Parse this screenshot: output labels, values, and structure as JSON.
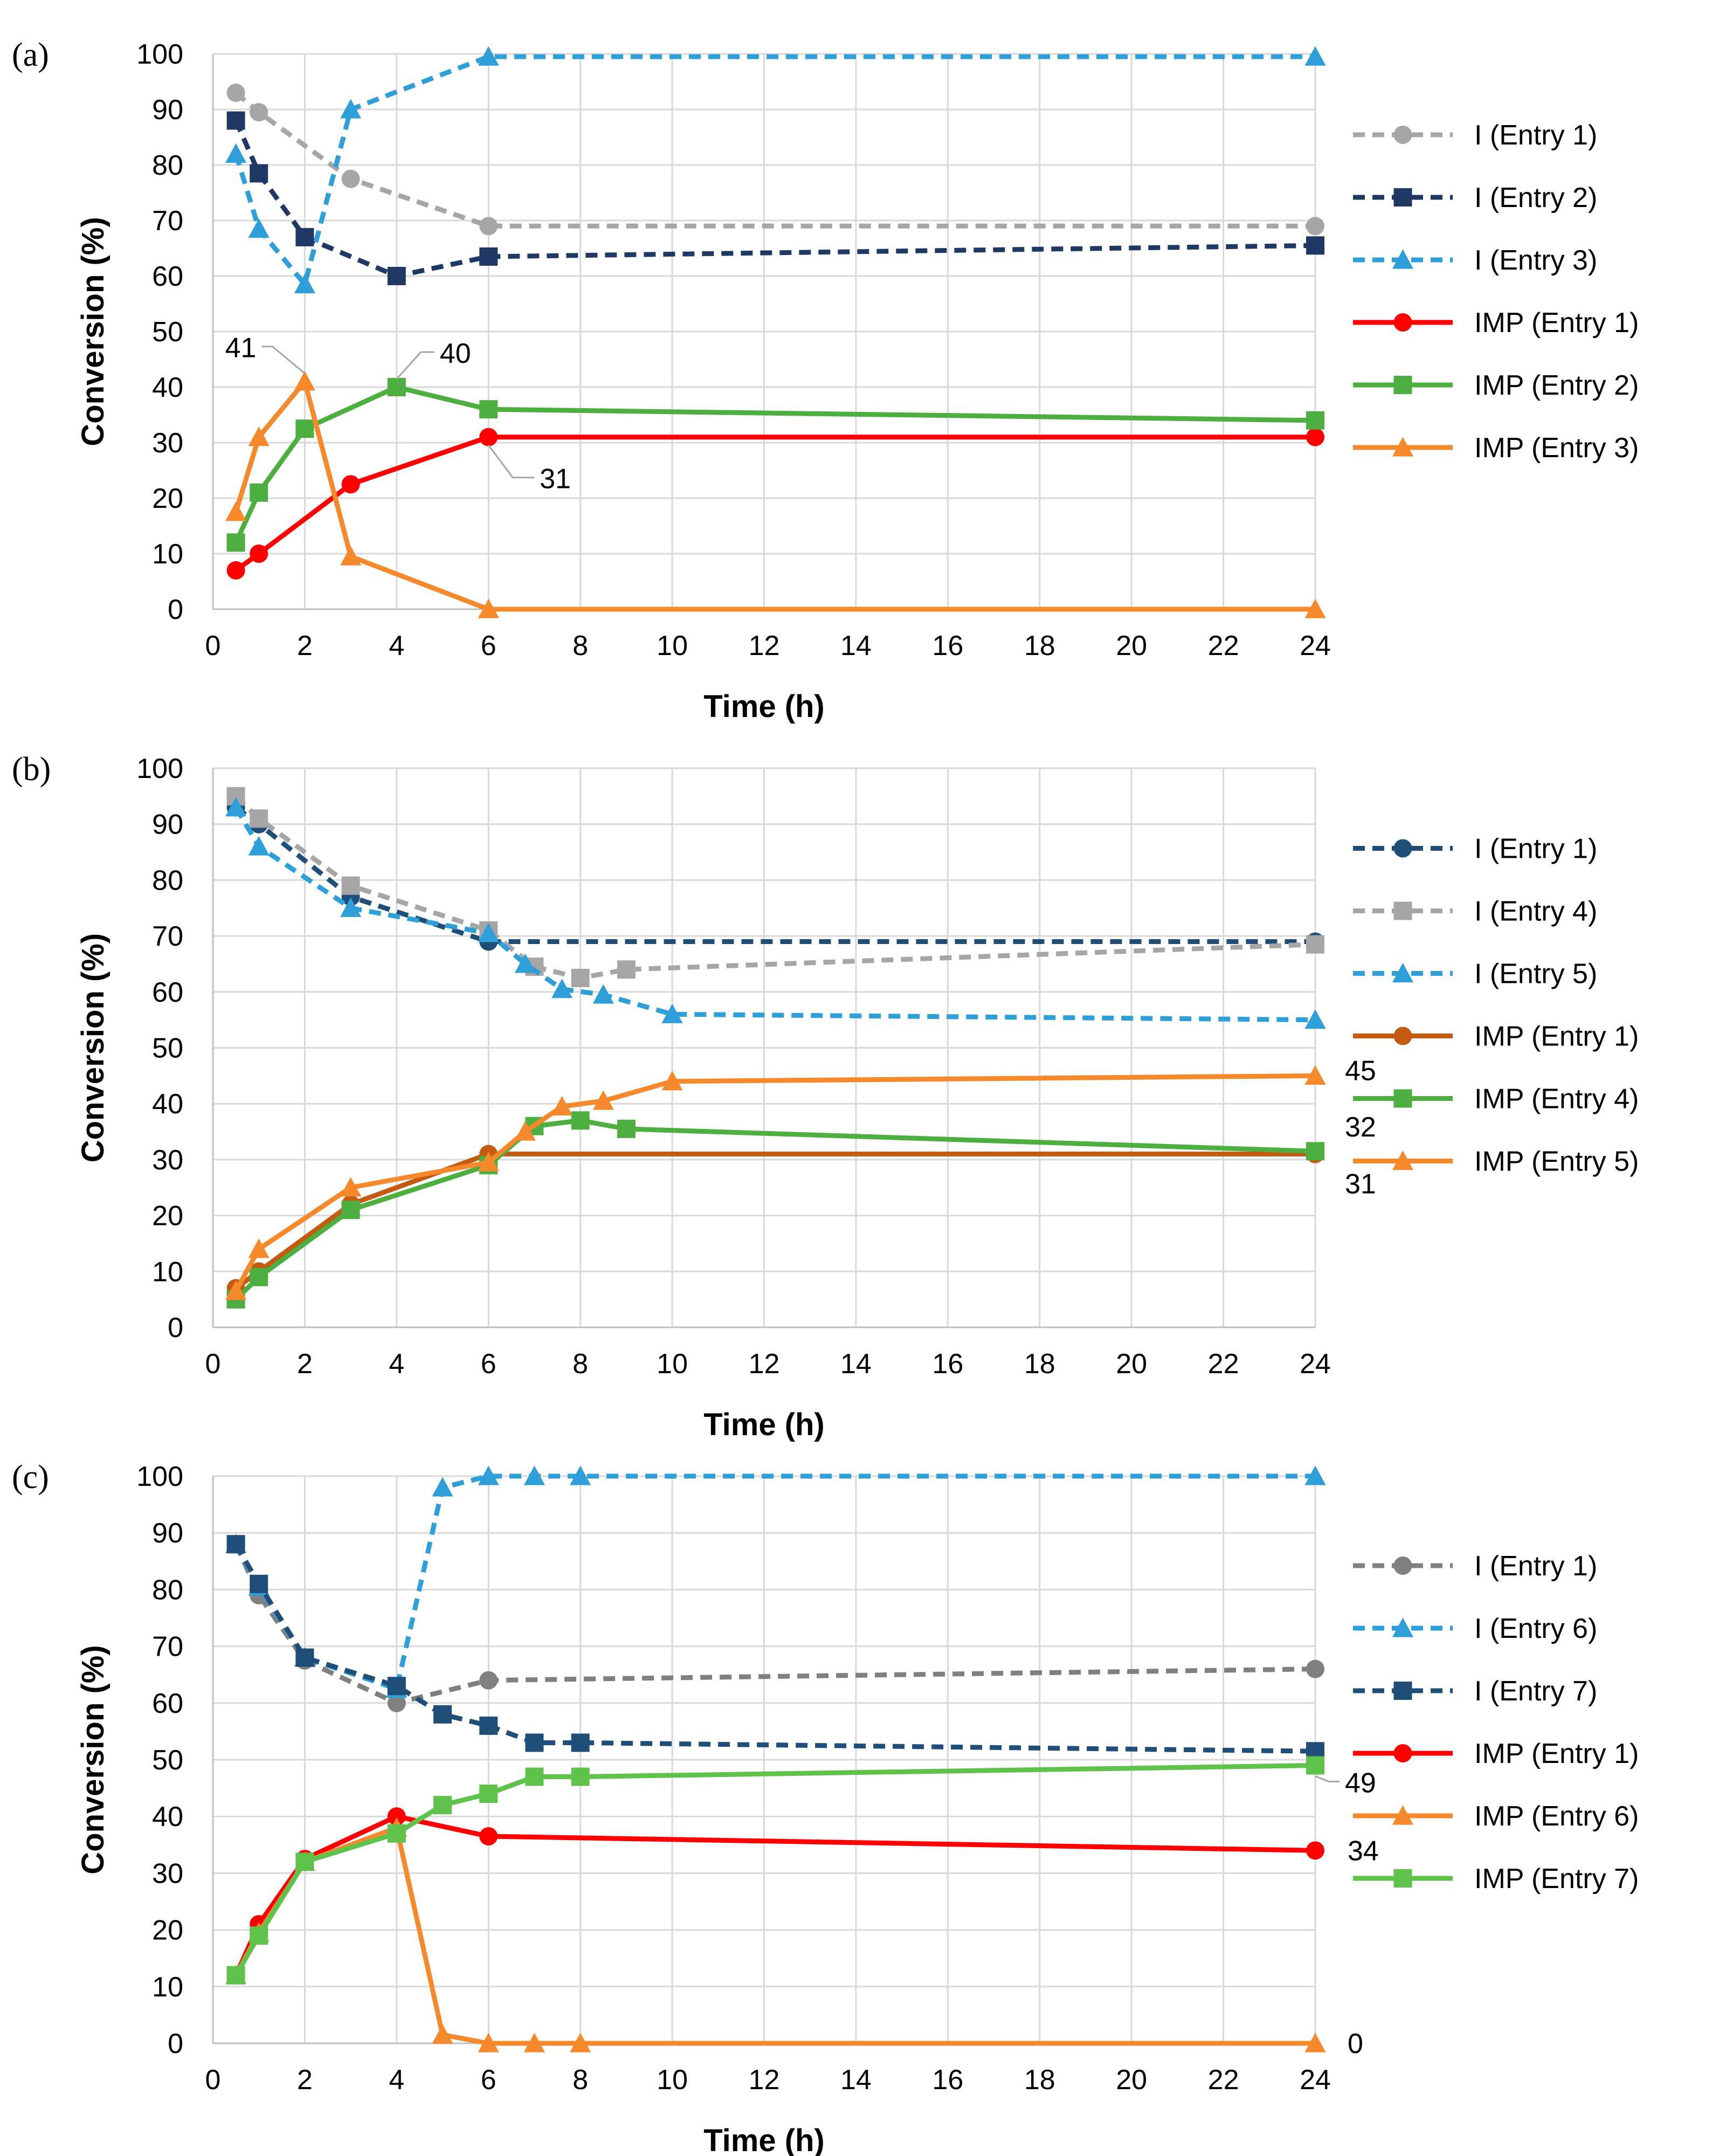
{
  "chart_data": [
    {
      "type": "line",
      "panel_label": "(a)",
      "xlabel": "Time (h)",
      "ylabel": "Conversion (%)",
      "x_ticks": [
        "0",
        "2",
        "4",
        "6",
        "8",
        "10",
        "12",
        "14",
        "16",
        "18",
        "20",
        "22",
        "24"
      ],
      "y_ticks": [
        "0",
        "10",
        "20",
        "30",
        "40",
        "50",
        "60",
        "70",
        "80",
        "90",
        "100"
      ],
      "xlim": [
        0,
        24
      ],
      "ylim": [
        0,
        100
      ],
      "grid": true,
      "legend_position": "right",
      "series": [
        {
          "name": "I (Entry 1)",
          "color": "#a6a6a6",
          "dash": "dashed",
          "marker": "circle",
          "x": [
            0.5,
            1,
            3,
            6,
            24
          ],
          "y": [
            93,
            89.5,
            77.5,
            69,
            69
          ]
        },
        {
          "name": "I (Entry 2)",
          "color": "#1f3864",
          "dash": "dashed",
          "marker": "square",
          "x": [
            0.5,
            1,
            2,
            4,
            6,
            24
          ],
          "y": [
            88,
            78.5,
            67,
            60,
            63.5,
            65.5
          ]
        },
        {
          "name": "I (Entry 3)",
          "color": "#2e9fd8",
          "dash": "dashed",
          "marker": "triangle",
          "x": [
            0.5,
            1,
            2,
            3,
            6,
            24
          ],
          "y": [
            82,
            68.5,
            58.5,
            90,
            99.5,
            99.5
          ]
        },
        {
          "name": "IMP (Entry 1)",
          "color": "#ff0000",
          "dash": "solid",
          "marker": "circle",
          "x": [
            0.5,
            1,
            3,
            6,
            24
          ],
          "y": [
            7,
            10,
            22.5,
            31,
            31
          ]
        },
        {
          "name": "IMP (Entry 2)",
          "color": "#4caf3f",
          "dash": "solid",
          "marker": "square",
          "x": [
            0.5,
            1,
            2,
            4,
            6,
            24
          ],
          "y": [
            12,
            21,
            32.5,
            40,
            36,
            34
          ]
        },
        {
          "name": "IMP (Entry 3)",
          "color": "#f6892b",
          "dash": "solid",
          "marker": "triangle",
          "x": [
            0.5,
            1,
            2,
            3,
            6,
            24
          ],
          "y": [
            17.5,
            31,
            41,
            9.5,
            0,
            0
          ]
        }
      ],
      "annotations": [
        {
          "text": "41",
          "x": 2,
          "y": 41,
          "leader": true
        },
        {
          "text": "40",
          "x": 4,
          "y": 40,
          "leader": true
        },
        {
          "text": "31",
          "x": 6,
          "y": 31,
          "leader": true
        }
      ]
    },
    {
      "type": "line",
      "panel_label": "(b)",
      "xlabel": "Time (h)",
      "ylabel": "Conversion (%)",
      "x_ticks": [
        "0",
        "2",
        "4",
        "6",
        "8",
        "10",
        "12",
        "14",
        "16",
        "18",
        "20",
        "22",
        "24"
      ],
      "y_ticks": [
        "0",
        "10",
        "20",
        "30",
        "40",
        "50",
        "60",
        "70",
        "80",
        "90",
        "100"
      ],
      "xlim": [
        0,
        24
      ],
      "ylim": [
        0,
        100
      ],
      "grid": true,
      "legend_position": "right",
      "series": [
        {
          "name": "I (Entry 1)",
          "color": "#1f4e79",
          "dash": "dashed",
          "marker": "circle",
          "x": [
            0.5,
            1,
            3,
            6,
            24
          ],
          "y": [
            93,
            90,
            77,
            69,
            69
          ]
        },
        {
          "name": "I (Entry 4)",
          "color": "#a6a6a6",
          "dash": "dashed",
          "marker": "square",
          "x": [
            0.5,
            1,
            3,
            6,
            7,
            8,
            9,
            24
          ],
          "y": [
            95,
            91,
            79,
            71,
            64.5,
            62.5,
            64,
            68.5
          ]
        },
        {
          "name": "I (Entry 5)",
          "color": "#2e9fd8",
          "dash": "dashed",
          "marker": "triangle",
          "x": [
            0.5,
            1,
            3,
            6,
            6.8,
            7.6,
            8.5,
            10,
            24
          ],
          "y": [
            93,
            86,
            75,
            70.5,
            65,
            60.5,
            59.5,
            56,
            55
          ]
        },
        {
          "name": "IMP (Entry 1)",
          "color": "#c55a11",
          "dash": "solid",
          "marker": "circle",
          "x": [
            0.5,
            1,
            3,
            6,
            24
          ],
          "y": [
            7,
            10,
            22,
            31,
            31
          ]
        },
        {
          "name": "IMP (Entry 4)",
          "color": "#4caf3f",
          "dash": "solid",
          "marker": "square",
          "x": [
            0.5,
            1,
            3,
            6,
            7,
            8,
            9,
            24
          ],
          "y": [
            5,
            9,
            21,
            29,
            36,
            37,
            35.5,
            31.5
          ]
        },
        {
          "name": "IMP (Entry 5)",
          "color": "#f6892b",
          "dash": "solid",
          "marker": "triangle",
          "x": [
            0.5,
            1,
            3,
            6,
            6.8,
            7.6,
            8.5,
            10,
            24
          ],
          "y": [
            6.5,
            14,
            25,
            29.5,
            35,
            39.5,
            40.5,
            44,
            45
          ]
        }
      ],
      "annotations": [
        {
          "text": "45",
          "x": 24,
          "y": 45,
          "leader": false
        },
        {
          "text": "32",
          "x": 24,
          "y": 32,
          "leader": false
        },
        {
          "text": "31",
          "x": 24,
          "y": 31,
          "leader": false
        }
      ]
    },
    {
      "type": "line",
      "panel_label": "(c)",
      "xlabel": "Time (h)",
      "ylabel": "Conversion (%)",
      "x_ticks": [
        "0",
        "2",
        "4",
        "6",
        "8",
        "10",
        "12",
        "14",
        "16",
        "18",
        "20",
        "22",
        "24"
      ],
      "y_ticks": [
        "0",
        "10",
        "20",
        "30",
        "40",
        "50",
        "60",
        "70",
        "80",
        "90",
        "100"
      ],
      "xlim": [
        0,
        24
      ],
      "ylim": [
        0,
        100
      ],
      "grid": true,
      "legend_position": "right",
      "series": [
        {
          "name": "I (Entry 1)",
          "color": "#808080",
          "dash": "dashed",
          "marker": "circle",
          "x": [
            0.5,
            1,
            2,
            4,
            6,
            24
          ],
          "y": [
            88,
            79,
            67.5,
            60,
            64,
            66
          ]
        },
        {
          "name": "I (Entry 6)",
          "color": "#2e9fd8",
          "dash": "dashed",
          "marker": "triangle",
          "x": [
            0.5,
            1,
            2,
            4,
            5,
            6,
            7,
            8,
            24
          ],
          "y": [
            88,
            80.5,
            68,
            62.5,
            98,
            100,
            100,
            100,
            100
          ]
        },
        {
          "name": "I (Entry 7)",
          "color": "#1f4e79",
          "dash": "dashed",
          "marker": "square",
          "x": [
            0.5,
            1,
            2,
            4,
            5,
            6,
            7,
            8,
            24
          ],
          "y": [
            88,
            81,
            68,
            63,
            58,
            56,
            53,
            53,
            51.5
          ]
        },
        {
          "name": "IMP (Entry 1)",
          "color": "#ff0000",
          "dash": "solid",
          "marker": "circle",
          "x": [
            0.5,
            1,
            2,
            4,
            6,
            24
          ],
          "y": [
            12,
            21,
            32.5,
            40,
            36.5,
            34
          ]
        },
        {
          "name": "IMP (Entry 6)",
          "color": "#f6892b",
          "dash": "solid",
          "marker": "triangle",
          "x": [
            0.5,
            1,
            2,
            4,
            5,
            6,
            7,
            8,
            24
          ],
          "y": [
            12,
            19.5,
            32,
            38,
            1.5,
            0,
            0,
            0,
            0
          ]
        },
        {
          "name": "IMP (Entry 7)",
          "color": "#5fc24a",
          "dash": "solid",
          "marker": "square",
          "x": [
            0.5,
            1,
            2,
            4,
            5,
            6,
            7,
            8,
            24
          ],
          "y": [
            12,
            19,
            32,
            37,
            42,
            44,
            47,
            47,
            49
          ]
        }
      ],
      "annotations": [
        {
          "text": "49",
          "x": 24,
          "y": 49,
          "leader": true
        },
        {
          "text": "34",
          "x": 24,
          "y": 34,
          "leader": false
        },
        {
          "text": "0",
          "x": 24,
          "y": 0,
          "leader": false
        }
      ]
    }
  ]
}
